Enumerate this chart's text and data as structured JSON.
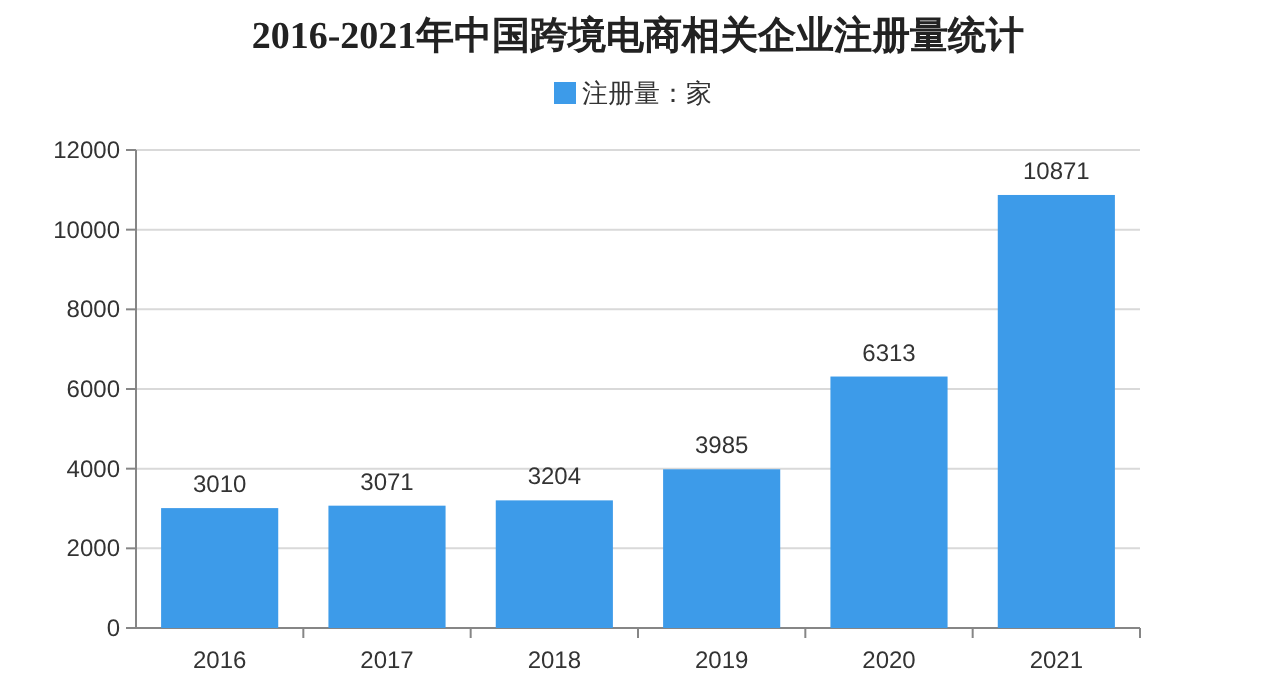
{
  "chart_data": {
    "type": "bar",
    "title": "2016-2021年中国跨境电商相关企业注册量统计",
    "categories": [
      "2016",
      "2017",
      "2018",
      "2019",
      "2020",
      "2021"
    ],
    "series": [
      {
        "name": "注册量：家",
        "color": "#3d9be9",
        "values": [
          3010,
          3071,
          3204,
          3985,
          6313,
          10871
        ]
      }
    ],
    "ylim": [
      0,
      12000
    ],
    "yticks": [
      0,
      2000,
      4000,
      6000,
      8000,
      10000,
      12000
    ],
    "grid": "y",
    "legend": "top",
    "data_labels": true
  }
}
